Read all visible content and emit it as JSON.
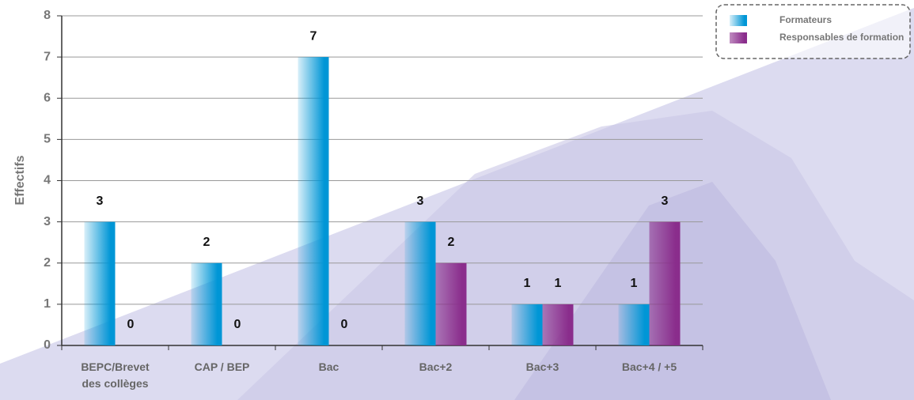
{
  "chart_data": {
    "type": "bar",
    "y_axis_label": "Effectifs",
    "categories": [
      "BEPC/Brevet des collèges",
      "CAP / BEP",
      "Bac",
      "Bac+2",
      "Bac+3",
      "Bac+4 / +5"
    ],
    "series": [
      {
        "name": "Formateurs",
        "color": "#0096d6",
        "values": [
          3,
          2,
          7,
          3,
          1,
          1
        ]
      },
      {
        "name": "Responsables de formation",
        "color": "#8a2d8c",
        "values": [
          0,
          0,
          0,
          2,
          1,
          3
        ]
      }
    ],
    "ylim": [
      0,
      8
    ],
    "yticks": [
      0,
      1,
      2,
      3,
      4,
      5,
      6,
      7,
      8
    ],
    "grid": true,
    "legend": "top-right"
  }
}
